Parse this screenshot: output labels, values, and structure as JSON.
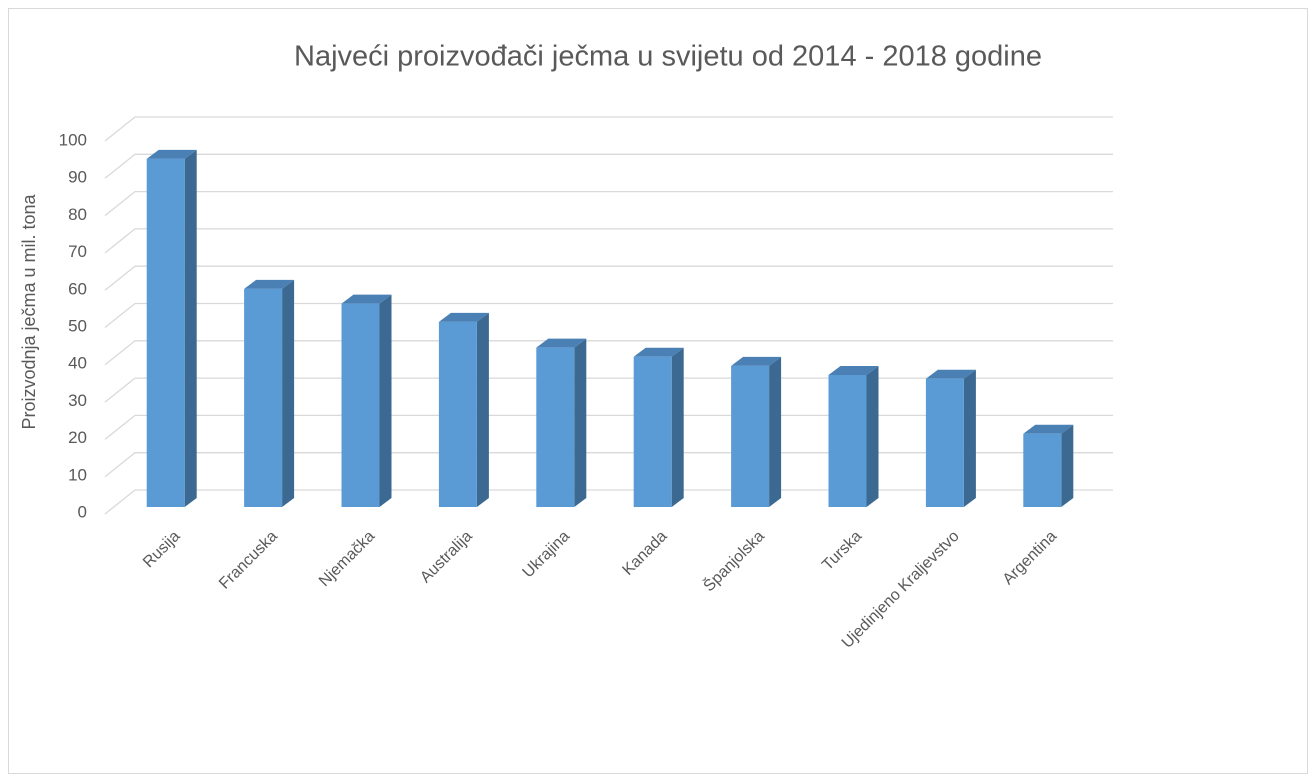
{
  "chart_data": {
    "type": "bar3d",
    "title": "Najveći proizvođači ječma u svijetu od 2014 - 2018 godine",
    "y_label": "Proizvodnja ječma u mil. tona",
    "categories": [
      "Rusija",
      "Francuska",
      "Njemačka",
      "Australija",
      "Ukrajina",
      "Kanada",
      "Španjolska",
      "Turska",
      "Ujedinjeno Kraljevstvo",
      "Argentina"
    ],
    "values": [
      95,
      59.5,
      55.5,
      50.5,
      43.5,
      41,
      38.5,
      36,
      35,
      20
    ],
    "color": "#5b9bd5",
    "ylim": [
      0,
      100
    ],
    "yticks": [
      0,
      10,
      20,
      30,
      40,
      50,
      60,
      70,
      80,
      90,
      100
    ],
    "grid": true
  }
}
